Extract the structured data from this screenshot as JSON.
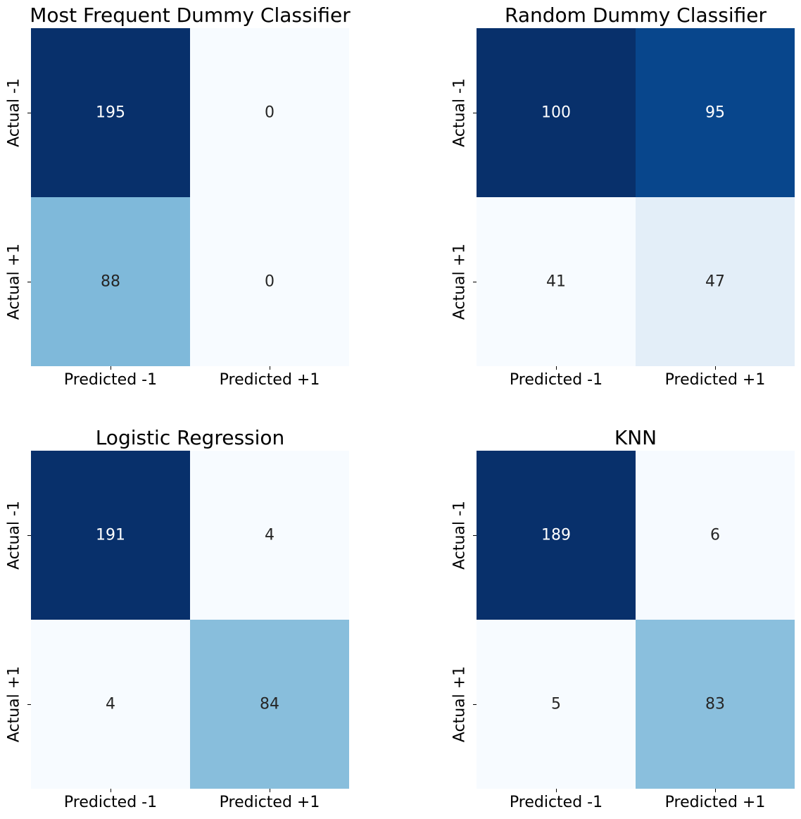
{
  "chart_data": [
    {
      "type": "heatmap",
      "title": "Most Frequent Dummy Classifier",
      "x_categories": [
        "Predicted -1",
        "Predicted +1"
      ],
      "y_categories": [
        "Actual -1",
        "Actual +1"
      ],
      "values": [
        [
          195,
          0
        ],
        [
          88,
          0
        ]
      ],
      "colormap": "Blues"
    },
    {
      "type": "heatmap",
      "title": "Random Dummy Classifier",
      "x_categories": [
        "Predicted -1",
        "Predicted +1"
      ],
      "y_categories": [
        "Actual -1",
        "Actual +1"
      ],
      "values": [
        [
          100,
          95
        ],
        [
          41,
          47
        ]
      ],
      "colormap": "Blues"
    },
    {
      "type": "heatmap",
      "title": "Logistic Regression",
      "x_categories": [
        "Predicted -1",
        "Predicted +1"
      ],
      "y_categories": [
        "Actual -1",
        "Actual +1"
      ],
      "values": [
        [
          191,
          4
        ],
        [
          4,
          84
        ]
      ],
      "colormap": "Blues"
    },
    {
      "type": "heatmap",
      "title": "KNN",
      "x_categories": [
        "Predicted -1",
        "Predicted +1"
      ],
      "y_categories": [
        "Actual -1",
        "Actual +1"
      ],
      "values": [
        [
          189,
          6
        ],
        [
          5,
          83
        ]
      ],
      "colormap": "Blues"
    }
  ]
}
